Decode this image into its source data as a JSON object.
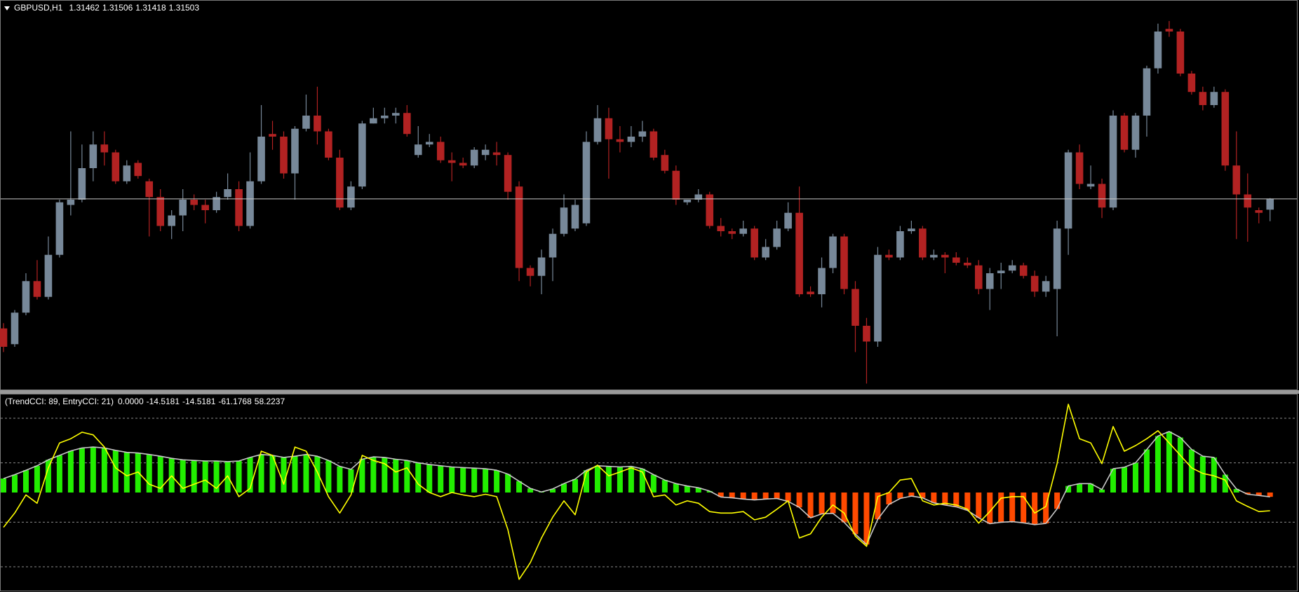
{
  "chart_data": [
    {
      "type": "candlestick",
      "title": "GBPUSD,H1",
      "ylim": [
        1.3078,
        1.3226
      ],
      "up_color": "#778899",
      "down_color": "#b22222",
      "bid_line_color": "#c8c8c8",
      "candles": [
        [
          1.3101,
          1.3103,
          1.3092,
          1.3094
        ],
        [
          1.3095,
          1.3108,
          1.3094,
          1.3107
        ],
        [
          1.3107,
          1.3122,
          1.3106,
          1.3119
        ],
        [
          1.3119,
          1.3127,
          1.3112,
          1.3113
        ],
        [
          1.3113,
          1.3136,
          1.3112,
          1.3129
        ],
        [
          1.3129,
          1.315,
          1.3128,
          1.3149
        ],
        [
          1.3148,
          1.3176,
          1.3144,
          1.315
        ],
        [
          1.315,
          1.3171,
          1.3149,
          1.3162
        ],
        [
          1.3162,
          1.3176,
          1.3157,
          1.3171
        ],
        [
          1.3171,
          1.3176,
          1.3163,
          1.3168
        ],
        [
          1.3168,
          1.3169,
          1.3156,
          1.3157
        ],
        [
          1.3157,
          1.3165,
          1.3156,
          1.3163
        ],
        [
          1.3164,
          1.3165,
          1.3158,
          1.3159
        ],
        [
          1.3157,
          1.3158,
          1.3136,
          1.3151
        ],
        [
          1.3151,
          1.3154,
          1.3138,
          1.314
        ],
        [
          1.314,
          1.3146,
          1.3135,
          1.3144
        ],
        [
          1.3144,
          1.3154,
          1.3138,
          1.315
        ],
        [
          1.315,
          1.3152,
          1.3146,
          1.3148
        ],
        [
          1.3148,
          1.315,
          1.3141,
          1.3146
        ],
        [
          1.3146,
          1.3153,
          1.3145,
          1.3151
        ],
        [
          1.3151,
          1.316,
          1.315,
          1.3154
        ],
        [
          1.3154,
          1.3157,
          1.3138,
          1.314
        ],
        [
          1.314,
          1.3168,
          1.3139,
          1.3157
        ],
        [
          1.3157,
          1.3186,
          1.3156,
          1.3174
        ],
        [
          1.3175,
          1.318,
          1.3169,
          1.3174
        ],
        [
          1.3174,
          1.3176,
          1.3158,
          1.316
        ],
        [
          1.316,
          1.3178,
          1.315,
          1.3177
        ],
        [
          1.3177,
          1.319,
          1.3176,
          1.3182
        ],
        [
          1.3182,
          1.3193,
          1.3171,
          1.3176
        ],
        [
          1.3176,
          1.3177,
          1.3165,
          1.3166
        ],
        [
          1.3166,
          1.3169,
          1.3146,
          1.3147
        ],
        [
          1.3147,
          1.3157,
          1.3146,
          1.3155
        ],
        [
          1.3155,
          1.318,
          1.3154,
          1.3179
        ],
        [
          1.3179,
          1.3185,
          1.3179,
          1.3181
        ],
        [
          1.3181,
          1.3185,
          1.3179,
          1.3182
        ],
        [
          1.3182,
          1.3185,
          1.3179,
          1.3183
        ],
        [
          1.3183,
          1.3186,
          1.3174,
          1.3175
        ],
        [
          1.3167,
          1.3178,
          1.3166,
          1.3171
        ],
        [
          1.3171,
          1.3175,
          1.317,
          1.3172
        ],
        [
          1.3172,
          1.3174,
          1.3164,
          1.3165
        ],
        [
          1.3165,
          1.3168,
          1.3157,
          1.3164
        ],
        [
          1.3164,
          1.3166,
          1.3162,
          1.3163
        ],
        [
          1.3163,
          1.317,
          1.3162,
          1.3169
        ],
        [
          1.3167,
          1.3171,
          1.3165,
          1.3169
        ],
        [
          1.3168,
          1.3172,
          1.3163,
          1.3167
        ],
        [
          1.3167,
          1.3168,
          1.315,
          1.3153
        ],
        [
          1.3155,
          1.3157,
          1.3119,
          1.3124
        ],
        [
          1.3124,
          1.3125,
          1.3117,
          1.3121
        ],
        [
          1.3121,
          1.3131,
          1.3114,
          1.3128
        ],
        [
          1.3128,
          1.3139,
          1.3119,
          1.3137
        ],
        [
          1.3137,
          1.3152,
          1.3136,
          1.3147
        ],
        [
          1.3139,
          1.315,
          1.3138,
          1.3148
        ],
        [
          1.3141,
          1.3176,
          1.314,
          1.3172
        ],
        [
          1.3172,
          1.3186,
          1.3171,
          1.3181
        ],
        [
          1.3181,
          1.3185,
          1.3158,
          1.3173
        ],
        [
          1.3173,
          1.3178,
          1.3168,
          1.3172
        ],
        [
          1.3172,
          1.3178,
          1.317,
          1.3174
        ],
        [
          1.3174,
          1.318,
          1.3172,
          1.3176
        ],
        [
          1.3176,
          1.3177,
          1.3165,
          1.3166
        ],
        [
          1.3167,
          1.3169,
          1.316,
          1.3161
        ],
        [
          1.3161,
          1.3163,
          1.3148,
          1.315
        ],
        [
          1.3149,
          1.315,
          1.3148,
          1.315
        ],
        [
          1.315,
          1.3154,
          1.3149,
          1.3152
        ],
        [
          1.3152,
          1.3153,
          1.3139,
          1.314
        ],
        [
          1.314,
          1.3143,
          1.3136,
          1.3138
        ],
        [
          1.3138,
          1.3139,
          1.3135,
          1.3137
        ],
        [
          1.3137,
          1.3142,
          1.3136,
          1.3139
        ],
        [
          1.3139,
          1.314,
          1.3127,
          1.3128
        ],
        [
          1.3128,
          1.3135,
          1.3127,
          1.3132
        ],
        [
          1.3132,
          1.3142,
          1.3131,
          1.3139
        ],
        [
          1.3139,
          1.3149,
          1.3138,
          1.3145
        ],
        [
          1.3145,
          1.3155,
          1.3113,
          1.3114
        ],
        [
          1.3115,
          1.3117,
          1.3113,
          1.3114
        ],
        [
          1.3114,
          1.3128,
          1.3109,
          1.3124
        ],
        [
          1.3124,
          1.3137,
          1.3122,
          1.3136
        ],
        [
          1.3136,
          1.3137,
          1.3114,
          1.3116
        ],
        [
          1.3116,
          1.3119,
          1.3092,
          1.3102
        ],
        [
          1.3102,
          1.3105,
          1.308,
          1.3096
        ],
        [
          1.3096,
          1.3132,
          1.3094,
          1.3129
        ],
        [
          1.3129,
          1.3131,
          1.3127,
          1.3128
        ],
        [
          1.3128,
          1.314,
          1.3127,
          1.3138
        ],
        [
          1.3138,
          1.3142,
          1.3137,
          1.3139
        ],
        [
          1.3139,
          1.314,
          1.3127,
          1.3128
        ],
        [
          1.3128,
          1.3131,
          1.3127,
          1.3129
        ],
        [
          1.3129,
          1.313,
          1.3122,
          1.3128
        ],
        [
          1.3128,
          1.313,
          1.3125,
          1.3126
        ],
        [
          1.3126,
          1.3128,
          1.3124,
          1.3125
        ],
        [
          1.3125,
          1.3127,
          1.3114,
          1.3116
        ],
        [
          1.3116,
          1.3124,
          1.3108,
          1.3122
        ],
        [
          1.3122,
          1.3126,
          1.3116,
          1.3123
        ],
        [
          1.3123,
          1.3127,
          1.3122,
          1.3125
        ],
        [
          1.3125,
          1.3126,
          1.312,
          1.3121
        ],
        [
          1.3121,
          1.3123,
          1.3113,
          1.3115
        ],
        [
          1.3115,
          1.3121,
          1.3113,
          1.3119
        ],
        [
          1.3116,
          1.3142,
          1.3098,
          1.3139
        ],
        [
          1.3139,
          1.3169,
          1.3129,
          1.3168
        ],
        [
          1.3168,
          1.3171,
          1.3154,
          1.3156
        ],
        [
          1.3155,
          1.3163,
          1.3154,
          1.3156
        ],
        [
          1.3156,
          1.3158,
          1.3143,
          1.3147
        ],
        [
          1.3147,
          1.3184,
          1.3146,
          1.3182
        ],
        [
          1.3182,
          1.3183,
          1.3168,
          1.3169
        ],
        [
          1.3169,
          1.3183,
          1.3166,
          1.3182
        ],
        [
          1.3182,
          1.3201,
          1.3174,
          1.32
        ],
        [
          1.32,
          1.3217,
          1.3198,
          1.3214
        ],
        [
          1.3215,
          1.3218,
          1.3212,
          1.3214
        ],
        [
          1.3214,
          1.3215,
          1.3197,
          1.3198
        ],
        [
          1.3198,
          1.3199,
          1.319,
          1.3191
        ],
        [
          1.3191,
          1.3193,
          1.3184,
          1.3186
        ],
        [
          1.3186,
          1.3193,
          1.3185,
          1.3191
        ],
        [
          1.3191,
          1.3192,
          1.3161,
          1.3163
        ],
        [
          1.3163,
          1.3176,
          1.3135,
          1.3152
        ],
        [
          1.3152,
          1.316,
          1.3134,
          1.3147
        ],
        [
          1.3146,
          1.3147,
          1.3141,
          1.3145
        ],
        [
          1.31462,
          1.31506,
          1.31418,
          1.31503
        ]
      ]
    },
    {
      "type": "cci",
      "title": "(TrendCCI: 89, EntryCCI: 21)",
      "readouts": [
        {
          "value": 0,
          "label": "0.0000"
        },
        -14.5181,
        -14.5181,
        -61.1768,
        58.2237
      ],
      "ylim": [
        -330,
        330
      ],
      "levels": [
        250,
        100,
        -100,
        -250
      ],
      "trend_cci": {
        "up_color": "#22ee00",
        "down_color": "#ff4a00",
        "line_color": "#c8c8c8",
        "values": [
          47,
          60,
          75,
          90,
          110,
          125,
          140,
          150,
          153,
          150,
          142,
          135,
          133,
          128,
          122,
          115,
          110,
          108,
          106,
          106,
          104,
          106,
          118,
          128,
          125,
          118,
          122,
          128,
          122,
          108,
          88,
          78,
          112,
          120,
          118,
          112,
          108,
          100,
          94,
          90,
          86,
          84,
          82,
          80,
          75,
          62,
          38,
          14,
          2,
          12,
          30,
          45,
          75,
          90,
          88,
          86,
          88,
          80,
          60,
          42,
          30,
          22,
          16,
          5,
          -15,
          -18,
          -22,
          -25,
          -22,
          -20,
          -30,
          -50,
          -85,
          -72,
          -70,
          -100,
          -140,
          -175,
          -90,
          -40,
          -20,
          -12,
          -18,
          -35,
          -42,
          -48,
          -60,
          -85,
          -105,
          -100,
          -98,
          -102,
          -108,
          -104,
          -55,
          22,
          30,
          30,
          10,
          80,
          85,
          100,
          145,
          190,
          205,
          185,
          145,
          122,
          118,
          60,
          12,
          -6,
          -10,
          -14.5181
        ]
      },
      "entry_cci": {
        "color": "#ffff00",
        "values": [
          -117,
          -69,
          -8,
          -36,
          83,
          167,
          181,
          203,
          194,
          153,
          83,
          56,
          69,
          28,
          14,
          56,
          14,
          28,
          42,
          14,
          56,
          -14,
          14,
          139,
          125,
          28,
          153,
          139,
          69,
          -14,
          -69,
          -8,
          125,
          108,
          97,
          69,
          83,
          28,
          0,
          -14,
          0,
          -8,
          -14,
          -6,
          -14,
          -125,
          -292,
          -236,
          -153,
          -83,
          -28,
          -75,
          69,
          92,
          56,
          69,
          83,
          69,
          -14,
          -8,
          -42,
          -28,
          -36,
          -64,
          -69,
          -69,
          -64,
          -92,
          -83,
          -56,
          -28,
          -153,
          -139,
          -83,
          -42,
          -69,
          -147,
          -181,
          -14,
          0,
          42,
          47,
          -28,
          -42,
          -36,
          -42,
          -56,
          -103,
          -64,
          -19,
          -14,
          -14,
          -69,
          -47,
          97,
          297,
          181,
          167,
          97,
          222,
          139,
          158,
          181,
          208,
          167,
          125,
          83,
          64,
          56,
          42,
          -28,
          -47,
          -64,
          -61.1768
        ]
      }
    }
  ]
}
